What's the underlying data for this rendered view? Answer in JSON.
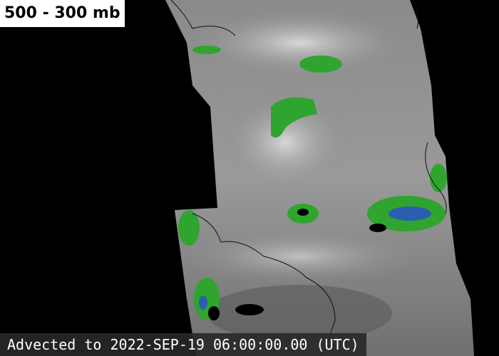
{
  "header": {
    "label": "500 - 300 mb"
  },
  "footer": {
    "timestamp": "Advected to 2022-SEP-19 06:00:00.00 (UTC)"
  }
}
